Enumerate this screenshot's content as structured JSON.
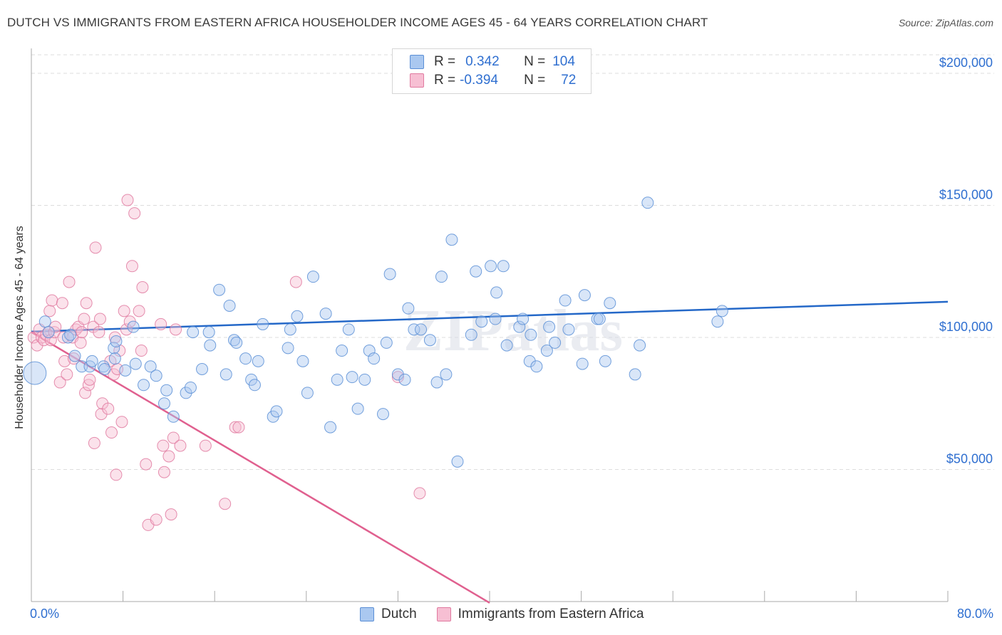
{
  "title": "DUTCH VS IMMIGRANTS FROM EASTERN AFRICA HOUSEHOLDER INCOME AGES 45 - 64 YEARS CORRELATION CHART",
  "source": "Source: ZipAtlas.com",
  "watermark": "ZIPatlas",
  "legend": {
    "rows": [
      {
        "r_label": "R =",
        "r_value": "0.342",
        "n_label": "N =",
        "n_value": "104"
      },
      {
        "r_label": "R =",
        "r_value": "-0.394",
        "n_label": "N =",
        "n_value": "72"
      }
    ]
  },
  "bottom_legend": {
    "dutch": "Dutch",
    "immigrants": "Immigrants from Eastern Africa"
  },
  "colors": {
    "dutch_fill": "#aac8f0",
    "dutch_stroke": "#5b8fd6",
    "dutch_line": "#2468c8",
    "imm_fill": "#f7bfd3",
    "imm_stroke": "#e07aa0",
    "imm_line": "#e0608f",
    "tick_text": "#2f6fd0",
    "grid": "#dddddd"
  },
  "chart_data": {
    "type": "scatter",
    "title": "DUTCH VS IMMIGRANTS FROM EASTERN AFRICA HOUSEHOLDER INCOME AGES 45 - 64 YEARS CORRELATION CHART",
    "xlabel": "",
    "ylabel": "Householder Income Ages 45 - 64 years",
    "xlim": [
      0,
      80
    ],
    "ylim": [
      0,
      207000
    ],
    "x_tick_labels": [
      "0.0%",
      "80.0%"
    ],
    "y_ticks": [
      50000,
      100000,
      150000,
      200000
    ],
    "y_tick_labels": [
      "$50,000",
      "$100,000",
      "$150,000",
      "$200,000"
    ],
    "grid": "horizontal dashed",
    "legend_position": "top-center",
    "series": [
      {
        "name": "Dutch",
        "R": 0.342,
        "N": 104,
        "trend": {
          "x": [
            0,
            80
          ],
          "y": [
            102200,
            113500
          ],
          "solid_until": 80
        },
        "points": [
          [
            0.3,
            86.5,
            "L"
          ],
          [
            1.2,
            106,
            "M"
          ],
          [
            1.5,
            102,
            "M"
          ],
          [
            3.2,
            100,
            "M"
          ],
          [
            3.4,
            101,
            "M"
          ],
          [
            3.8,
            93,
            "M"
          ],
          [
            4.4,
            89,
            "M"
          ],
          [
            5.1,
            89,
            "M"
          ],
          [
            5.3,
            91,
            "M"
          ],
          [
            6.3,
            89,
            "M"
          ],
          [
            6.4,
            88,
            "M"
          ],
          [
            7.2,
            96,
            "M"
          ],
          [
            7.3,
            92,
            "M"
          ],
          [
            7.4,
            98.5,
            "M"
          ],
          [
            8.2,
            87.5,
            "M"
          ],
          [
            8.9,
            104,
            "M"
          ],
          [
            9.1,
            90,
            "M"
          ],
          [
            9.8,
            82,
            "M"
          ],
          [
            10.4,
            89,
            "M"
          ],
          [
            10.9,
            85.5,
            "M"
          ],
          [
            11.6,
            75,
            "M"
          ],
          [
            11.8,
            80,
            "M"
          ],
          [
            12.4,
            70,
            "M"
          ],
          [
            13.5,
            79,
            "M"
          ],
          [
            13.9,
            81,
            "M"
          ],
          [
            14.1,
            102,
            "M"
          ],
          [
            14.9,
            88,
            "M"
          ],
          [
            15.5,
            102,
            "M"
          ],
          [
            15.6,
            97,
            "M"
          ],
          [
            16.4,
            118,
            "M"
          ],
          [
            17.0,
            86,
            "M"
          ],
          [
            17.3,
            112,
            "M"
          ],
          [
            17.7,
            99,
            "M"
          ],
          [
            17.9,
            98,
            "M"
          ],
          [
            18.7,
            92,
            "M"
          ],
          [
            19.2,
            84,
            "M"
          ],
          [
            19.5,
            82,
            "M"
          ],
          [
            19.8,
            91,
            "M"
          ],
          [
            20.2,
            105,
            "M"
          ],
          [
            21.1,
            70,
            "M"
          ],
          [
            21.4,
            72,
            "M"
          ],
          [
            22.4,
            96,
            "M"
          ],
          [
            22.6,
            103,
            "M"
          ],
          [
            23.2,
            108,
            "M"
          ],
          [
            23.7,
            91,
            "M"
          ],
          [
            24.1,
            79,
            "M"
          ],
          [
            24.6,
            123,
            "M"
          ],
          [
            25.7,
            109,
            "M"
          ],
          [
            26.1,
            66,
            "M"
          ],
          [
            26.7,
            84,
            "M"
          ],
          [
            27.1,
            95,
            "M"
          ],
          [
            27.7,
            103,
            "M"
          ],
          [
            28.0,
            85,
            "M"
          ],
          [
            28.5,
            73,
            "M"
          ],
          [
            29.1,
            84,
            "M"
          ],
          [
            29.5,
            95,
            "M"
          ],
          [
            29.9,
            92,
            "M"
          ],
          [
            30.7,
            71,
            "M"
          ],
          [
            31.0,
            98,
            "M"
          ],
          [
            31.3,
            124,
            "M"
          ],
          [
            32.0,
            86,
            "M"
          ],
          [
            32.6,
            84,
            "M"
          ],
          [
            32.9,
            111,
            "M"
          ],
          [
            33.4,
            103,
            "M"
          ],
          [
            34.0,
            103,
            "M"
          ],
          [
            34.8,
            99,
            "M"
          ],
          [
            35.4,
            83,
            "M"
          ],
          [
            35.8,
            123,
            "M"
          ],
          [
            36.2,
            86,
            "M"
          ],
          [
            36.7,
            137,
            "M"
          ],
          [
            37.2,
            53,
            "M"
          ],
          [
            38.4,
            101,
            "M"
          ],
          [
            38.8,
            125,
            "M"
          ],
          [
            39.3,
            106,
            "M"
          ],
          [
            40.1,
            127,
            "M"
          ],
          [
            40.5,
            107,
            "M"
          ],
          [
            40.6,
            117,
            "M"
          ],
          [
            41.2,
            127,
            "M"
          ],
          [
            41.5,
            97,
            "M"
          ],
          [
            42.6,
            104,
            "M"
          ],
          [
            42.9,
            107,
            "M"
          ],
          [
            43.5,
            91,
            "M"
          ],
          [
            43.6,
            101,
            "M"
          ],
          [
            44.1,
            89,
            "M"
          ],
          [
            45.0,
            95,
            "M"
          ],
          [
            45.2,
            104,
            "M"
          ],
          [
            45.7,
            98,
            "M"
          ],
          [
            46.6,
            114,
            "M"
          ],
          [
            46.9,
            103,
            "M"
          ],
          [
            48.1,
            90,
            "M"
          ],
          [
            48.3,
            116,
            "M"
          ],
          [
            49.4,
            107,
            "M"
          ],
          [
            49.6,
            107,
            "M"
          ],
          [
            50.1,
            91,
            "M"
          ],
          [
            50.5,
            113,
            "M"
          ],
          [
            52.7,
            86,
            "M"
          ],
          [
            53.1,
            97,
            "M"
          ],
          [
            53.8,
            151,
            "M"
          ],
          [
            59.9,
            106,
            "M"
          ],
          [
            60.3,
            110,
            "M"
          ]
        ]
      },
      {
        "name": "Immigrants from Eastern Africa",
        "R": -0.394,
        "N": 72,
        "trend": {
          "x": [
            0,
            80
          ],
          "y": [
            102000,
            -103000
          ],
          "solid_until": 40
        },
        "points": [
          [
            0.2,
            100,
            "M"
          ],
          [
            0.5,
            97,
            "M"
          ],
          [
            0.7,
            103,
            "M"
          ],
          [
            0.9,
            100,
            "M"
          ],
          [
            1.1,
            99,
            "M"
          ],
          [
            1.3,
            101,
            "M"
          ],
          [
            1.5,
            102,
            "M"
          ],
          [
            1.6,
            110,
            "M"
          ],
          [
            1.7,
            99,
            "M"
          ],
          [
            1.8,
            114,
            "M"
          ],
          [
            2.0,
            102,
            "M"
          ],
          [
            2.1,
            104,
            "M"
          ],
          [
            2.5,
            83,
            "M"
          ],
          [
            2.7,
            113,
            "M"
          ],
          [
            2.8,
            100,
            "M"
          ],
          [
            2.9,
            91,
            "M"
          ],
          [
            3.1,
            86,
            "M"
          ],
          [
            3.3,
            121,
            "M"
          ],
          [
            3.6,
            100,
            "M"
          ],
          [
            3.7,
            92,
            "M"
          ],
          [
            3.9,
            103,
            "M"
          ],
          [
            4.1,
            104,
            "M"
          ],
          [
            4.3,
            98,
            "M"
          ],
          [
            4.4,
            102,
            "M"
          ],
          [
            4.6,
            107,
            "M"
          ],
          [
            4.7,
            79,
            "M"
          ],
          [
            4.8,
            113,
            "M"
          ],
          [
            5.0,
            82,
            "M"
          ],
          [
            5.1,
            84,
            "M"
          ],
          [
            5.4,
            104,
            "M"
          ],
          [
            5.5,
            60,
            "M"
          ],
          [
            5.6,
            134,
            "M"
          ],
          [
            5.9,
            102,
            "M"
          ],
          [
            6.0,
            107,
            "M"
          ],
          [
            6.1,
            71,
            "M"
          ],
          [
            6.2,
            75,
            "M"
          ],
          [
            6.7,
            73,
            "M"
          ],
          [
            6.9,
            91,
            "M"
          ],
          [
            7.0,
            64,
            "M"
          ],
          [
            7.2,
            86,
            "M"
          ],
          [
            7.3,
            100,
            "M"
          ],
          [
            7.4,
            48,
            "M"
          ],
          [
            7.5,
            88,
            "M"
          ],
          [
            7.7,
            95,
            "M"
          ],
          [
            7.9,
            68,
            "M"
          ],
          [
            8.1,
            110,
            "M"
          ],
          [
            8.3,
            103,
            "M"
          ],
          [
            8.4,
            152,
            "M"
          ],
          [
            8.6,
            106,
            "M"
          ],
          [
            8.8,
            127,
            "M"
          ],
          [
            9.0,
            147,
            "M"
          ],
          [
            9.4,
            110,
            "M"
          ],
          [
            9.6,
            95,
            "M"
          ],
          [
            9.7,
            119,
            "M"
          ],
          [
            10.0,
            52,
            "M"
          ],
          [
            10.2,
            29,
            "M"
          ],
          [
            10.9,
            31,
            "M"
          ],
          [
            11.3,
            105,
            "M"
          ],
          [
            11.5,
            59,
            "M"
          ],
          [
            11.6,
            49,
            "M"
          ],
          [
            12.0,
            55,
            "M"
          ],
          [
            12.2,
            33,
            "M"
          ],
          [
            12.4,
            62,
            "M"
          ],
          [
            12.6,
            103,
            "M"
          ],
          [
            13.0,
            59,
            "M"
          ],
          [
            15.2,
            59,
            "M"
          ],
          [
            16.9,
            37,
            "M"
          ],
          [
            17.8,
            66,
            "M"
          ],
          [
            18.1,
            66,
            "M"
          ],
          [
            23.1,
            121,
            "M"
          ],
          [
            32.0,
            85,
            "M"
          ],
          [
            33.9,
            41,
            "M"
          ]
        ]
      }
    ]
  }
}
